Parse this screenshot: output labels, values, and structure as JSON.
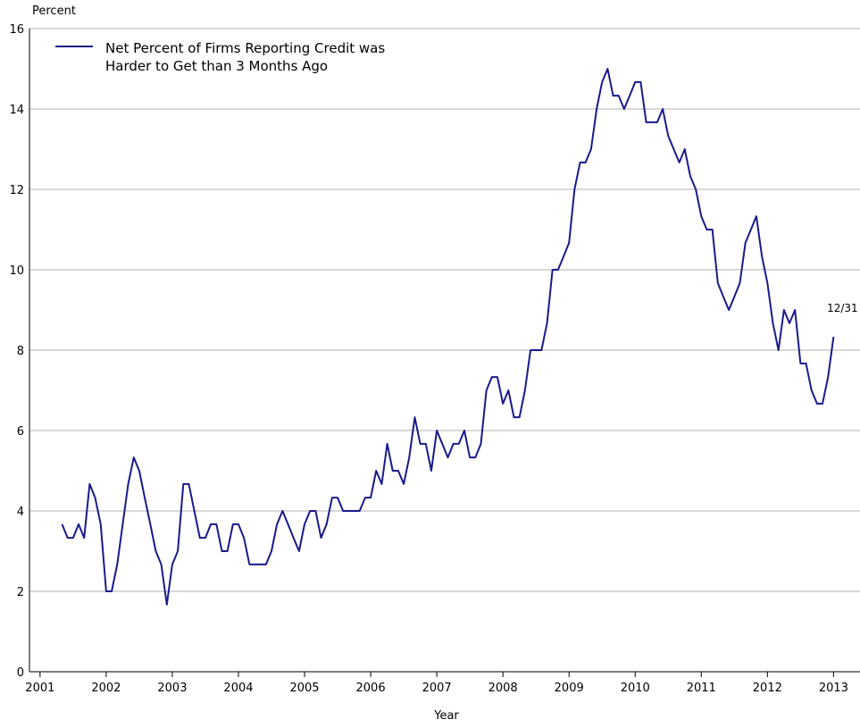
{
  "chart_data": {
    "type": "line",
    "y_axis_label": "Percent",
    "x_axis_label": "Year",
    "annotation": "12/31",
    "xlim": [
      2000.84,
      2013.4
    ],
    "xticks": [
      2001,
      2002,
      2003,
      2004,
      2005,
      2006,
      2007,
      2008,
      2009,
      2010,
      2011,
      2012,
      2013
    ],
    "ylim": [
      0,
      16
    ],
    "yticks": [
      0,
      2,
      4,
      6,
      8,
      10,
      12,
      14,
      16
    ],
    "grid": true,
    "legend": "upper left",
    "x": [
      2001.333,
      2001.417,
      2001.5,
      2001.583,
      2001.667,
      2001.75,
      2001.833,
      2001.917,
      2002,
      2002.083,
      2002.167,
      2002.25,
      2002.333,
      2002.417,
      2002.5,
      2002.583,
      2002.667,
      2002.75,
      2002.833,
      2002.917,
      2003,
      2003.083,
      2003.167,
      2003.25,
      2003.333,
      2003.417,
      2003.5,
      2003.583,
      2003.667,
      2003.75,
      2003.833,
      2003.917,
      2004,
      2004.083,
      2004.167,
      2004.25,
      2004.333,
      2004.417,
      2004.5,
      2004.583,
      2004.667,
      2004.75,
      2004.833,
      2004.917,
      2005,
      2005.083,
      2005.167,
      2005.25,
      2005.333,
      2005.417,
      2005.5,
      2005.583,
      2005.667,
      2005.75,
      2005.833,
      2005.917,
      2006,
      2006.083,
      2006.167,
      2006.25,
      2006.333,
      2006.417,
      2006.5,
      2006.583,
      2006.667,
      2006.75,
      2006.833,
      2006.917,
      2007,
      2007.083,
      2007.167,
      2007.25,
      2007.333,
      2007.417,
      2007.5,
      2007.583,
      2007.667,
      2007.75,
      2007.833,
      2007.917,
      2008,
      2008.083,
      2008.167,
      2008.25,
      2008.333,
      2008.417,
      2008.5,
      2008.583,
      2008.667,
      2008.75,
      2008.833,
      2008.917,
      2009,
      2009.083,
      2009.167,
      2009.25,
      2009.333,
      2009.417,
      2009.5,
      2009.583,
      2009.667,
      2009.75,
      2009.833,
      2009.917,
      2010,
      2010.083,
      2010.167,
      2010.25,
      2010.333,
      2010.417,
      2010.5,
      2010.583,
      2010.667,
      2010.75,
      2010.833,
      2010.917,
      2011,
      2011.083,
      2011.167,
      2011.25,
      2011.333,
      2011.417,
      2011.5,
      2011.583,
      2011.667,
      2011.75,
      2011.833,
      2011.917,
      2012,
      2012.083,
      2012.167,
      2012.25,
      2012.333,
      2012.417,
      2012.5,
      2012.583,
      2012.667,
      2012.75,
      2012.833,
      2012.917,
      2013
    ],
    "series": [
      {
        "name": "Net Percent of Firms Reporting Credit was Harder to Get than 3 Months Ago",
        "color": "#1a1a8c",
        "values": [
          3.67,
          3.33,
          3.33,
          3.67,
          3.33,
          4.67,
          4.33,
          3.67,
          2.0,
          2.0,
          2.67,
          3.67,
          4.67,
          5.33,
          5.0,
          4.33,
          3.67,
          3.0,
          2.67,
          1.67,
          2.67,
          3.0,
          4.67,
          4.67,
          4.0,
          3.33,
          3.33,
          3.67,
          3.67,
          3.0,
          3.0,
          3.67,
          3.67,
          3.33,
          2.67,
          2.67,
          2.67,
          2.67,
          3.0,
          3.67,
          4.0,
          3.67,
          3.33,
          3.0,
          3.67,
          4.0,
          4.0,
          3.33,
          3.67,
          4.33,
          4.33,
          4.0,
          4.0,
          4.0,
          4.0,
          4.33,
          4.33,
          5.0,
          4.67,
          5.67,
          5.0,
          5.0,
          4.67,
          5.33,
          6.33,
          5.67,
          5.67,
          5.0,
          6.0,
          5.67,
          5.33,
          5.67,
          5.67,
          6.0,
          5.33,
          5.33,
          5.67,
          7.0,
          7.33,
          7.33,
          6.67,
          7.0,
          6.33,
          6.33,
          7.0,
          8.0,
          8.0,
          8.0,
          8.67,
          10.0,
          10.0,
          10.33,
          10.67,
          12.0,
          12.67,
          12.67,
          13.0,
          14.0,
          14.67,
          15.0,
          14.33,
          14.33,
          14.0,
          14.33,
          14.67,
          14.67,
          13.67,
          13.67,
          13.67,
          14.0,
          13.33,
          13.0,
          12.67,
          13.0,
          12.33,
          12.0,
          11.33,
          11.0,
          11.0,
          9.67,
          9.33,
          9.0,
          9.33,
          9.67,
          10.67,
          11.0,
          11.33,
          10.33,
          9.67,
          8.67,
          8.0,
          9.0,
          8.67,
          9.0,
          7.67,
          7.67,
          7.0,
          6.67,
          6.67,
          7.33,
          8.33
        ]
      }
    ]
  }
}
